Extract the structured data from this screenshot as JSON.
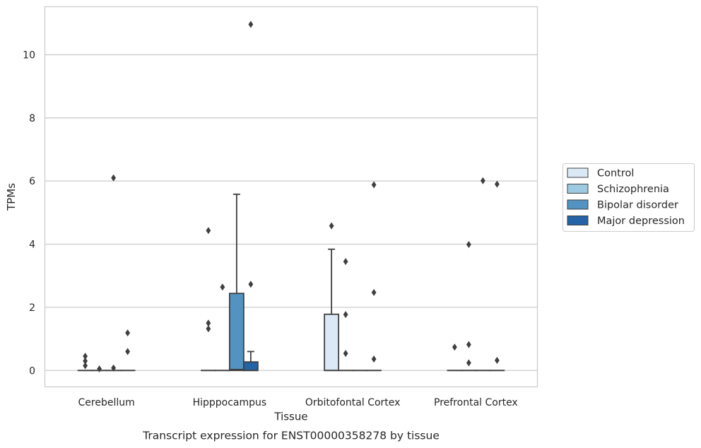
{
  "chart_data": {
    "type": "box",
    "title": "",
    "caption": "Transcript expression for ENST00000358278 by tissue",
    "xlabel": "Tissue",
    "ylabel": "TPMs",
    "ylim": [
      -0.52,
      11.52
    ],
    "y_ticks": [
      "0",
      "2",
      "4",
      "6",
      "8",
      "10"
    ],
    "grid": "horizontal",
    "legend_position": "right",
    "categories": [
      "Cerebellum",
      "Hipppocampus",
      "Orbitofontal Cortex",
      "Prefrontal Cortex"
    ],
    "series": [
      {
        "name": "Control",
        "color": "#dbe9f6",
        "boxes": [
          {
            "q1": 0,
            "median": 0,
            "q3": 0,
            "whislo": 0,
            "whishi": 0,
            "fliers": [
              0.45,
              0.3,
              0.15
            ]
          },
          {
            "q1": 0,
            "median": 0,
            "q3": 0,
            "whislo": 0,
            "whishi": 0,
            "fliers": [
              4.43,
              1.5,
              1.32
            ]
          },
          {
            "q1": 0,
            "median": 0,
            "q3": 1.78,
            "whislo": 0,
            "whishi": 3.84,
            "fliers": [
              4.58
            ]
          },
          {
            "q1": 0,
            "median": 0,
            "q3": 0,
            "whislo": 0,
            "whishi": 0,
            "fliers": [
              0.74
            ]
          }
        ]
      },
      {
        "name": "Schizophrenia",
        "color": "#9ecae1",
        "boxes": [
          {
            "q1": 0,
            "median": 0,
            "q3": 0,
            "whislo": 0,
            "whishi": 0,
            "fliers": [
              0.05
            ]
          },
          {
            "q1": 0,
            "median": 0,
            "q3": 0,
            "whislo": 0,
            "whishi": 0,
            "fliers": [
              2.64
            ]
          },
          {
            "q1": 0,
            "median": 0,
            "q3": 0,
            "whislo": 0,
            "whishi": 0,
            "fliers": [
              3.45,
              1.77,
              0.54
            ]
          },
          {
            "q1": 0,
            "median": 0,
            "q3": 0,
            "whislo": 0,
            "whishi": 0,
            "fliers": [
              3.99,
              0.82,
              0.24
            ]
          }
        ]
      },
      {
        "name": "Bipolar disorder",
        "color": "#5293c2",
        "boxes": [
          {
            "q1": 0,
            "median": 0,
            "q3": 0,
            "whislo": 0,
            "whishi": 0,
            "fliers": [
              6.1,
              0.08
            ]
          },
          {
            "q1": 0,
            "median": 0.03,
            "q3": 2.44,
            "whislo": 0,
            "whishi": 5.58,
            "fliers": []
          },
          {
            "q1": 0,
            "median": 0,
            "q3": 0,
            "whislo": 0,
            "whishi": 0,
            "fliers": []
          },
          {
            "q1": 0,
            "median": 0,
            "q3": 0,
            "whislo": 0,
            "whishi": 0,
            "fliers": [
              6.01
            ]
          }
        ]
      },
      {
        "name": "Major depression",
        "color": "#2363a6",
        "boxes": [
          {
            "q1": 0,
            "median": 0,
            "q3": 0,
            "whislo": 0,
            "whishi": 0,
            "fliers": [
              1.19,
              0.6
            ]
          },
          {
            "q1": 0,
            "median": 0,
            "q3": 0.27,
            "whislo": 0,
            "whishi": 0.6,
            "fliers": [
              10.96,
              2.73
            ]
          },
          {
            "q1": 0,
            "median": 0,
            "q3": 0,
            "whislo": 0,
            "whishi": 0,
            "fliers": [
              5.88,
              2.47,
              0.36
            ]
          },
          {
            "q1": 0,
            "median": 0,
            "q3": 0,
            "whislo": 0,
            "whishi": 0,
            "fliers": [
              5.9,
              0.32
            ]
          }
        ]
      }
    ]
  }
}
